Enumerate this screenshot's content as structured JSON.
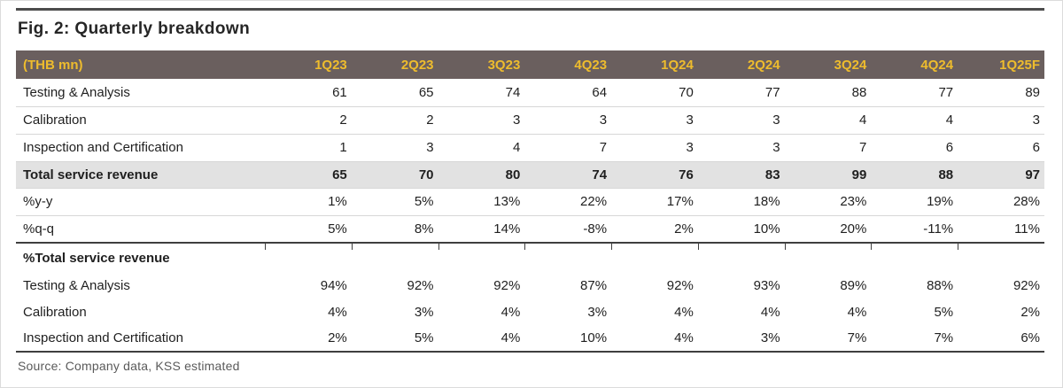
{
  "figure": {
    "title": "Fig. 2: Quarterly breakdown",
    "source": "Source: Company data, KSS estimated"
  },
  "table": {
    "unit_label": "(THB mn)",
    "columns": [
      "1Q23",
      "2Q23",
      "3Q23",
      "4Q23",
      "1Q24",
      "2Q24",
      "3Q24",
      "4Q24",
      "1Q25F"
    ],
    "rows": [
      {
        "label": "Testing & Analysis",
        "kind": "data",
        "values": [
          "61",
          "65",
          "74",
          "64",
          "70",
          "77",
          "88",
          "77",
          "89"
        ]
      },
      {
        "label": "Calibration",
        "kind": "data",
        "values": [
          "2",
          "2",
          "3",
          "3",
          "3",
          "3",
          "4",
          "4",
          "3"
        ]
      },
      {
        "label": "Inspection and Certification",
        "kind": "data",
        "values": [
          "1",
          "3",
          "4",
          "7",
          "3",
          "3",
          "7",
          "6",
          "6"
        ]
      },
      {
        "label": "Total service revenue",
        "kind": "total",
        "values": [
          "65",
          "70",
          "80",
          "74",
          "76",
          "83",
          "99",
          "88",
          "97"
        ]
      },
      {
        "label": "%y-y",
        "kind": "data",
        "values": [
          "1%",
          "5%",
          "13%",
          "22%",
          "17%",
          "18%",
          "23%",
          "19%",
          "28%"
        ]
      },
      {
        "label": "%q-q",
        "kind": "data",
        "values": [
          "5%",
          "8%",
          "14%",
          "-8%",
          "2%",
          "10%",
          "20%",
          "-11%",
          "11%"
        ]
      },
      {
        "label": "%Total service revenue",
        "kind": "section",
        "values": [
          "",
          "",
          "",
          "",
          "",
          "",
          "",
          "",
          ""
        ]
      },
      {
        "label": "Testing & Analysis",
        "kind": "plain",
        "values": [
          "94%",
          "92%",
          "92%",
          "87%",
          "92%",
          "93%",
          "89%",
          "88%",
          "92%"
        ]
      },
      {
        "label": "Calibration",
        "kind": "plain",
        "values": [
          "4%",
          "3%",
          "4%",
          "3%",
          "4%",
          "4%",
          "4%",
          "5%",
          "2%"
        ]
      },
      {
        "label": "Inspection and Certification",
        "kind": "plain",
        "values": [
          "2%",
          "5%",
          "4%",
          "10%",
          "4%",
          "3%",
          "7%",
          "7%",
          "6%"
        ]
      }
    ]
  },
  "colors": {
    "header_bg": "#6a5f5e",
    "header_text": "#eebc2d",
    "total_row_bg": "#e2e2e2",
    "dark_rule": "#3f3f3f",
    "row_border": "#d7d7d7",
    "body_text": "#1f1f1f",
    "source_text": "#5a5a5a"
  },
  "chart_data": {
    "type": "table",
    "title": "Fig. 2: Quarterly breakdown",
    "unit": "THB mn",
    "columns": [
      "1Q23",
      "2Q23",
      "3Q23",
      "4Q23",
      "1Q24",
      "2Q24",
      "3Q24",
      "4Q24",
      "1Q25F"
    ],
    "series": [
      {
        "name": "Testing & Analysis (THB mn)",
        "values": [
          61,
          65,
          74,
          64,
          70,
          77,
          88,
          77,
          89
        ]
      },
      {
        "name": "Calibration (THB mn)",
        "values": [
          2,
          2,
          3,
          3,
          3,
          3,
          4,
          4,
          3
        ]
      },
      {
        "name": "Inspection and Certification (THB mn)",
        "values": [
          1,
          3,
          4,
          7,
          3,
          3,
          7,
          6,
          6
        ]
      },
      {
        "name": "Total service revenue (THB mn)",
        "values": [
          65,
          70,
          80,
          74,
          76,
          83,
          99,
          88,
          97
        ]
      },
      {
        "name": "%y-y",
        "values": [
          "1%",
          "5%",
          "13%",
          "22%",
          "17%",
          "18%",
          "23%",
          "19%",
          "28%"
        ]
      },
      {
        "name": "%q-q",
        "values": [
          "5%",
          "8%",
          "14%",
          "-8%",
          "2%",
          "10%",
          "20%",
          "-11%",
          "11%"
        ]
      },
      {
        "name": "Testing & Analysis (% of total)",
        "values": [
          "94%",
          "92%",
          "92%",
          "87%",
          "92%",
          "93%",
          "89%",
          "88%",
          "92%"
        ]
      },
      {
        "name": "Calibration (% of total)",
        "values": [
          "4%",
          "3%",
          "4%",
          "3%",
          "4%",
          "4%",
          "4%",
          "5%",
          "2%"
        ]
      },
      {
        "name": "Inspection and Certification (% of total)",
        "values": [
          "2%",
          "5%",
          "4%",
          "10%",
          "4%",
          "3%",
          "7%",
          "7%",
          "6%"
        ]
      }
    ],
    "source": "Source: Company data, KSS estimated"
  }
}
